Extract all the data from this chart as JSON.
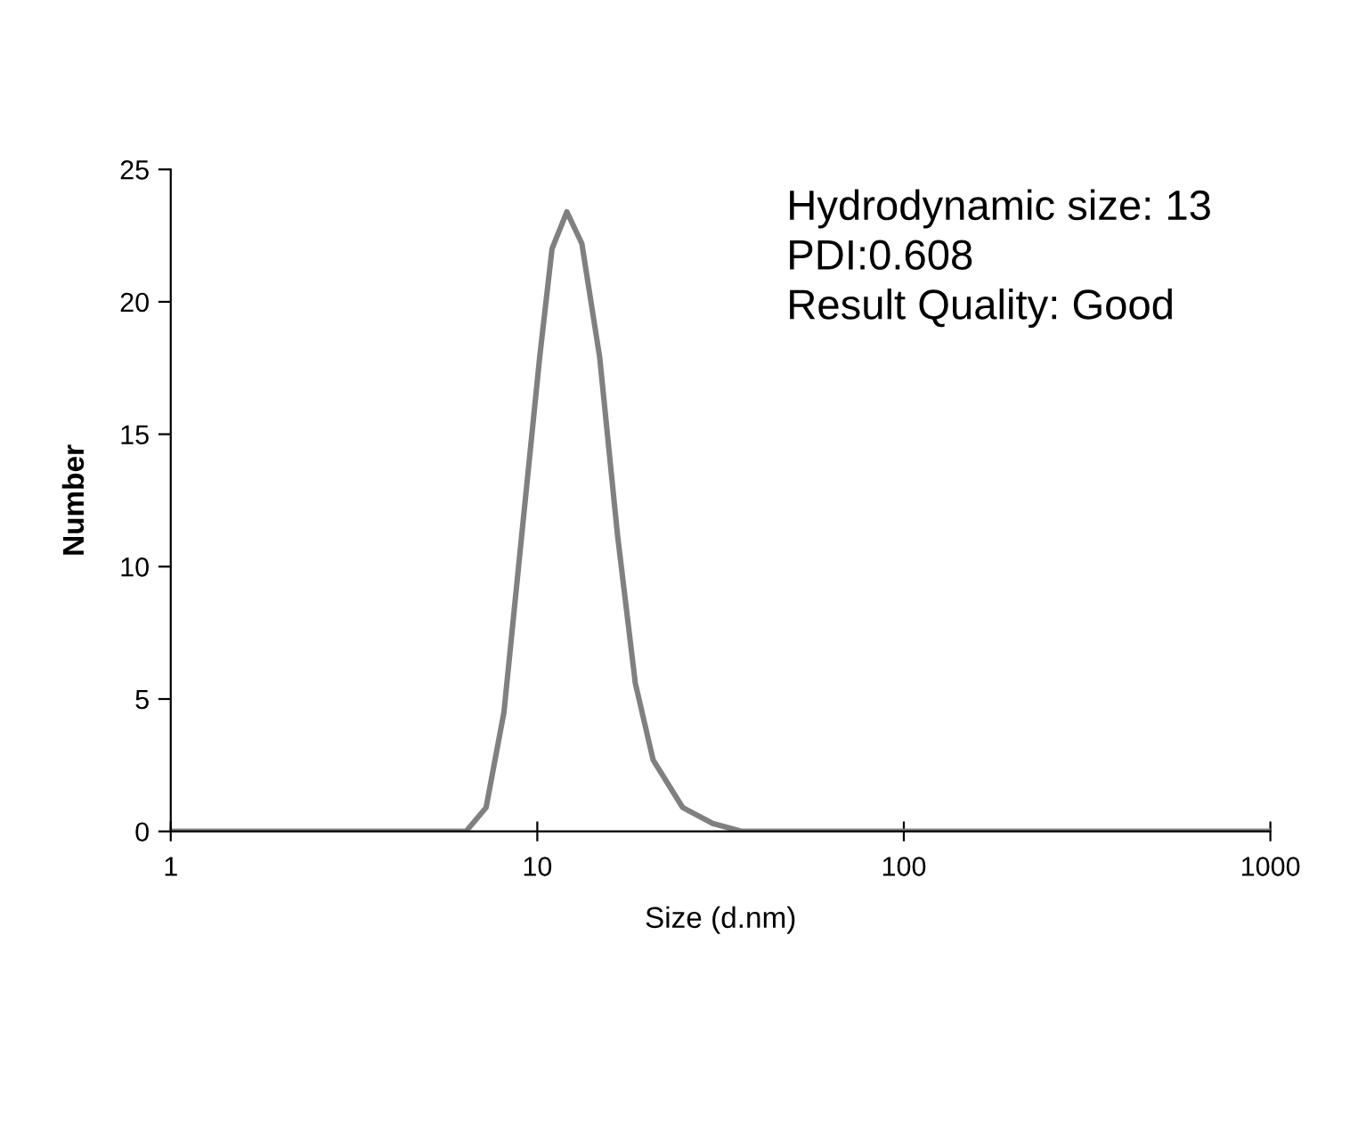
{
  "chart_data": {
    "type": "line",
    "xlabel": "Size (d.nm)",
    "ylabel": "Number",
    "log": "x",
    "x": [
      1,
      6.39,
      7.25,
      8.11,
      9.07,
      10.15,
      10.97,
      12.04,
      13.23,
      14.8,
      16.55,
      18.51,
      20.7,
      24.93,
      30.1,
      36.2,
      45,
      1000
    ],
    "series": [
      {
        "color": "#808080",
        "values": [
          0,
          0,
          0.9,
          4.5,
          11.2,
          17.9,
          22.0,
          23.4,
          22.2,
          17.9,
          11.2,
          5.6,
          2.7,
          0.9,
          0.3,
          0,
          0,
          0
        ]
      }
    ],
    "xlim": [
      1,
      1000
    ],
    "xticks": [
      1,
      10,
      100,
      1000
    ],
    "ylim": [
      0,
      25
    ],
    "yticks": [
      0,
      5,
      10,
      15,
      20,
      25
    ],
    "grid": false,
    "legend": false,
    "marker": "none",
    "line_style": "solid",
    "annotations": [
      "Hydrodynamic size: 13",
      "PDI:0.608",
      "Result Quality: Good"
    ]
  }
}
